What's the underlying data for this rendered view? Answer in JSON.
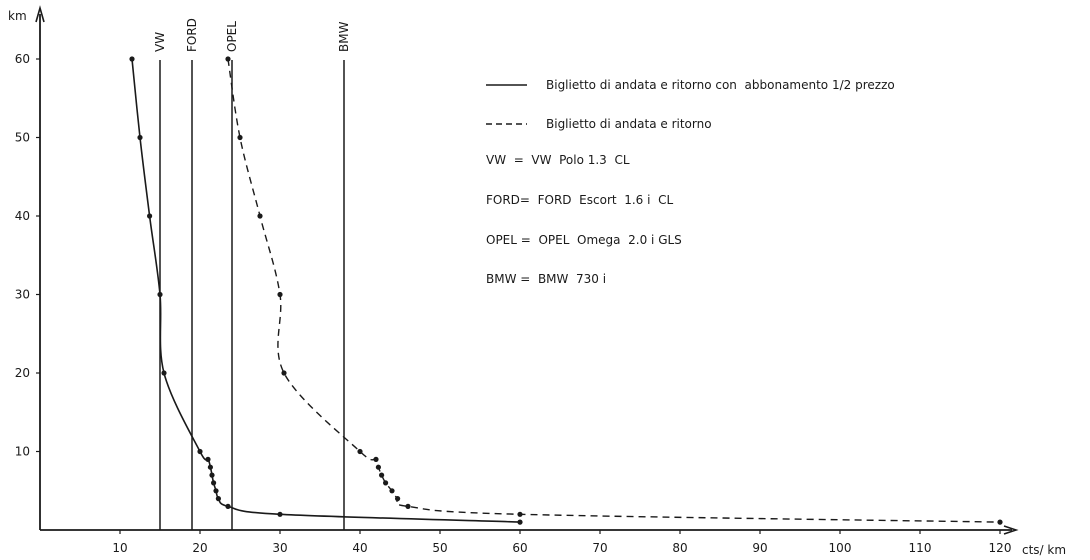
{
  "chart_data": {
    "type": "line",
    "xlabel": "cts/ km",
    "ylabel": "km",
    "xlim": [
      0,
      120
    ],
    "ylim": [
      0,
      60
    ],
    "xticks": [
      10,
      20,
      30,
      40,
      50,
      60,
      70,
      80,
      90,
      100,
      110,
      120
    ],
    "yticks": [
      10,
      20,
      30,
      40,
      50,
      60
    ],
    "grid": false,
    "legend_position": "top-right",
    "series": [
      {
        "name": "Biglietto di andata e ritorno con abbonamento 1/2 prezzo",
        "style": "solid",
        "points": [
          {
            "x": 11.5,
            "y": 60
          },
          {
            "x": 12.5,
            "y": 50
          },
          {
            "x": 13.7,
            "y": 40
          },
          {
            "x": 15,
            "y": 30
          },
          {
            "x": 15.5,
            "y": 20
          },
          {
            "x": 20,
            "y": 10
          },
          {
            "x": 21,
            "y": 9
          },
          {
            "x": 21.3,
            "y": 8
          },
          {
            "x": 21.5,
            "y": 7
          },
          {
            "x": 21.7,
            "y": 6
          },
          {
            "x": 22,
            "y": 5
          },
          {
            "x": 22.3,
            "y": 4
          },
          {
            "x": 23.5,
            "y": 3
          },
          {
            "x": 30,
            "y": 2
          },
          {
            "x": 60,
            "y": 1
          }
        ]
      },
      {
        "name": "Biglietto di andata e ritorno",
        "style": "dashed",
        "points": [
          {
            "x": 23.5,
            "y": 60
          },
          {
            "x": 25,
            "y": 50
          },
          {
            "x": 27.5,
            "y": 40
          },
          {
            "x": 30,
            "y": 30
          },
          {
            "x": 30.5,
            "y": 20
          },
          {
            "x": 40,
            "y": 10
          },
          {
            "x": 42,
            "y": 9
          },
          {
            "x": 42.3,
            "y": 8
          },
          {
            "x": 42.7,
            "y": 7
          },
          {
            "x": 43.2,
            "y": 6
          },
          {
            "x": 44,
            "y": 5
          },
          {
            "x": 44.7,
            "y": 4
          },
          {
            "x": 46,
            "y": 3
          },
          {
            "x": 60,
            "y": 2
          },
          {
            "x": 120,
            "y": 1
          }
        ]
      }
    ],
    "reference_lines": [
      {
        "label": "VW",
        "x": 15
      },
      {
        "label": "FORD",
        "x": 19
      },
      {
        "label": "OPEL",
        "x": 24
      },
      {
        "label": "BMW",
        "x": 38
      }
    ],
    "legend": {
      "solid": "Biglietto di andata e ritorno con  abbonamento 1/2 prezzo",
      "dashed": "Biglietto di andata e ritorno"
    },
    "key": [
      "VW  =  VW  Polo 1.3  CL",
      "FORD=  FORD  Escort  1.6 i  CL",
      "OPEL =  OPEL  Omega  2.0 i GLS",
      "BMW =  BMW  730 i"
    ]
  }
}
